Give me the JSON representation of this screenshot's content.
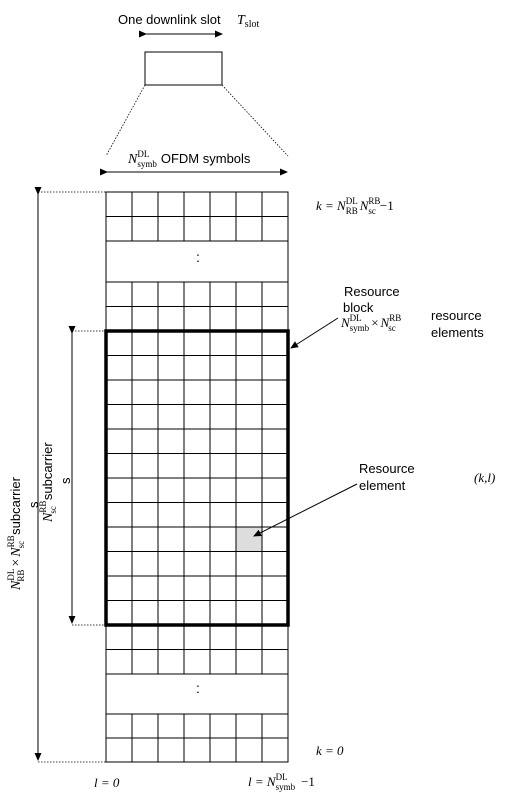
{
  "slot": {
    "label": "One downlink slot",
    "symbol": "T",
    "symbol_sub": "slot"
  },
  "symbols_header": {
    "N": "N",
    "sup": "DL",
    "sub": "symb",
    "text": "OFDM symbols"
  },
  "k_top": {
    "prefix": "k = N",
    "sup1": "DL",
    "sub1": "RB",
    "mid": "N",
    "sup2": "RB",
    "sub2": "sc",
    "suffix": "−1"
  },
  "k_bottom": "k = 0",
  "l_left": "l = 0",
  "l_right": {
    "prefix": "l = N",
    "sup": "DL",
    "sub": "symb",
    "suffix": "−1"
  },
  "resource_block": {
    "line1": "Resource",
    "line2": "block",
    "formula_N1": "N",
    "formula_sup1": "DL",
    "formula_sub1": "symb",
    "formula_times": "×",
    "formula_N2": "N",
    "formula_sup2": "RB",
    "formula_sub2": "sc",
    "tail1": "resource",
    "tail2": "elements"
  },
  "resource_element": {
    "line1": "Resource",
    "line2": "element",
    "kl": "(k,l)"
  },
  "left_outer": {
    "N1": "N",
    "sup1": "DL",
    "sub1": "RB",
    "times": "×",
    "N2": "N",
    "sup2": "RB",
    "sub2": "sc",
    "word": "subcarrier",
    "tail": "s"
  },
  "left_inner": {
    "N": "N",
    "sup": "RB",
    "sub": "sc",
    "word": "subcarrier",
    "tail": "s"
  },
  "ellipsis": ":"
}
